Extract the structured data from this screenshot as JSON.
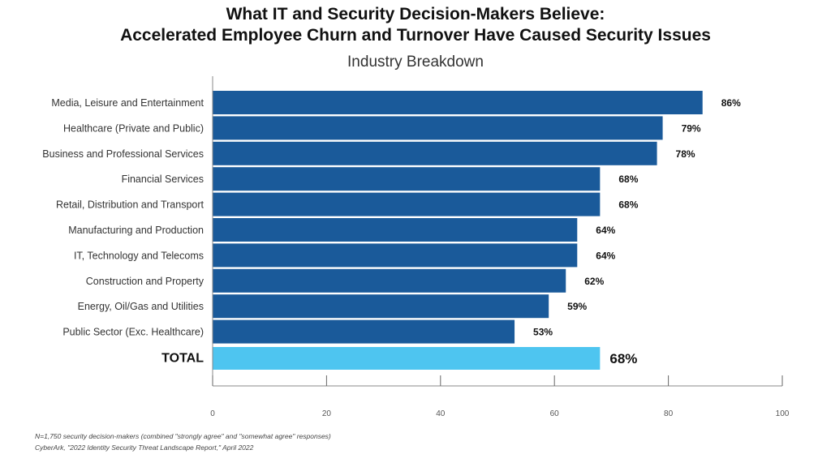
{
  "chart_data": {
    "type": "bar",
    "orientation": "horizontal",
    "title": "What IT and Security Decision-Makers Believe:",
    "title_line2": "Accelerated Employee Churn and Turnover Have Caused Security Issues",
    "subtitle": "Industry Breakdown",
    "categories": [
      "Media, Leisure and Entertainment",
      "Healthcare (Private and Public)",
      "Business and Professional Services",
      "Financial Services",
      "Retail, Distribution and Transport",
      "Manufacturing and Production",
      "IT, Technology and Telecoms",
      "Construction and Property",
      "Energy, Oil/Gas and Utilities",
      "Public Sector (Exc. Healthcare)",
      "TOTAL"
    ],
    "values": [
      86,
      79,
      78,
      68,
      68,
      64,
      64,
      62,
      59,
      53,
      68
    ],
    "data_labels": [
      "86%",
      "79%",
      "78%",
      "68%",
      "68%",
      "64%",
      "64%",
      "62%",
      "59%",
      "53%",
      "68%"
    ],
    "xlim": [
      0,
      100
    ],
    "xticks": [
      "0",
      "20",
      "40",
      "60",
      "80",
      "100"
    ],
    "grid": false,
    "colors": {
      "bar": "#1a5a9a",
      "total_bar": "#4ec5f0"
    },
    "footnotes": [
      "N=1,750 security decision-makers (combined \"strongly agree\" and \"somewhat agree\" responses)",
      "CyberArk, \"2022 Identity Security Threat Landscape Report,\" April 2022"
    ]
  }
}
